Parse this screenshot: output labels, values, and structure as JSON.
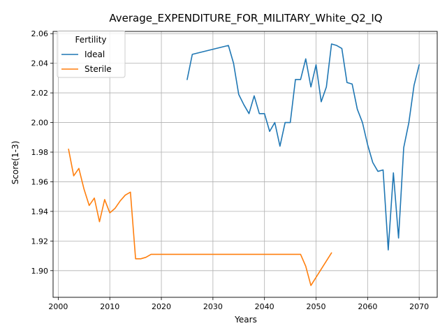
{
  "chart_data": {
    "type": "line",
    "title": "Average_EXPENDITURE_FOR_MILITARY_White_Q2_IQ",
    "xlabel": "Years",
    "ylabel": "Score(1-3)",
    "xlim": [
      1999,
      2073.5
    ],
    "ylim": [
      1.882,
      2.0615
    ],
    "xticks": [
      2000,
      2010,
      2020,
      2030,
      2040,
      2050,
      2060,
      2070
    ],
    "yticks": [
      1.9,
      1.92,
      1.94,
      1.96,
      1.98,
      2.0,
      2.02,
      2.04,
      2.06
    ],
    "xtick_labels": [
      "2000",
      "2010",
      "2020",
      "2030",
      "2040",
      "2050",
      "2060",
      "2070"
    ],
    "ytick_labels": [
      "1.90",
      "1.92",
      "1.94",
      "1.96",
      "1.98",
      "2.00",
      "2.02",
      "2.04",
      "2.06"
    ],
    "grid": true,
    "legend": {
      "title": "Fertility",
      "position": "upper left"
    },
    "series": [
      {
        "name": "Ideal",
        "color": "#1f77b4",
        "x": [
          2025,
          2026,
          2033,
          2034,
          2035,
          2036,
          2037,
          2038,
          2039,
          2040,
          2041,
          2042,
          2043,
          2044,
          2045,
          2046,
          2047,
          2048,
          2049,
          2050,
          2051,
          2052,
          2053,
          2054,
          2055,
          2056,
          2057,
          2058,
          2059,
          2060,
          2061,
          2062,
          2063,
          2064,
          2065,
          2066,
          2067,
          2068,
          2069,
          2070
        ],
        "y": [
          2.029,
          2.046,
          2.052,
          2.04,
          2.019,
          2.012,
          2.006,
          2.018,
          2.006,
          2.006,
          1.994,
          2.0,
          1.984,
          2.0,
          2.0,
          2.029,
          2.029,
          2.043,
          2.024,
          2.039,
          2.014,
          2.024,
          2.053,
          2.052,
          2.05,
          2.027,
          2.026,
          2.009,
          2.0,
          1.985,
          1.973,
          1.967,
          1.968,
          1.914,
          1.966,
          1.922,
          1.983,
          2.0,
          2.025,
          2.039
        ]
      },
      {
        "name": "Sterile",
        "color": "#ff7f0e",
        "x": [
          2002,
          2003,
          2004,
          2005,
          2006,
          2007,
          2008,
          2009,
          2010,
          2011,
          2012,
          2013,
          2014,
          2015,
          2016,
          2017,
          2018,
          2019,
          2020,
          2030,
          2040,
          2046,
          2047,
          2048,
          2049,
          2053
        ],
        "y": [
          1.982,
          1.964,
          1.969,
          1.955,
          1.944,
          1.949,
          1.933,
          1.948,
          1.939,
          1.942,
          1.947,
          1.951,
          1.953,
          1.908,
          1.908,
          1.909,
          1.911,
          1.911,
          1.911,
          1.911,
          1.911,
          1.911,
          1.911,
          1.903,
          1.89,
          1.912
        ]
      }
    ]
  }
}
